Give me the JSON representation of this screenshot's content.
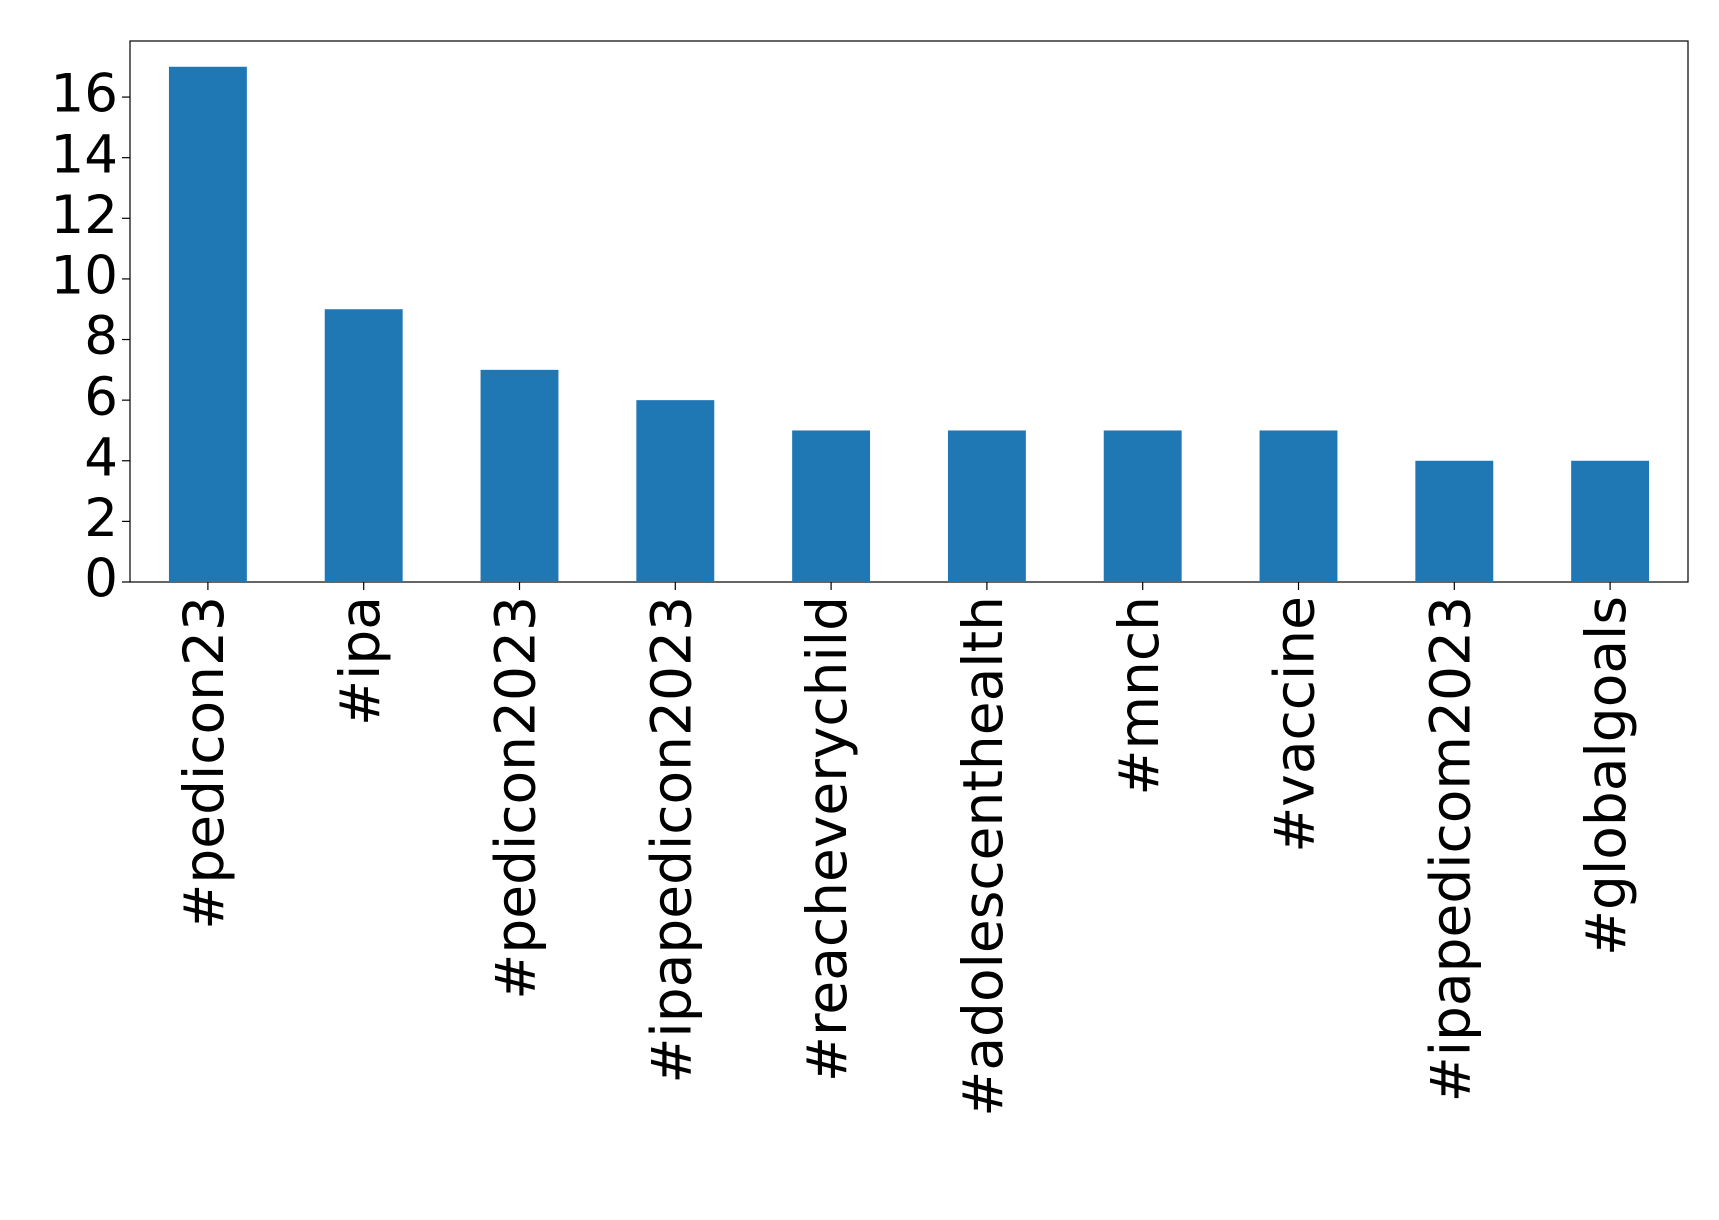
{
  "chart_data": {
    "type": "bar",
    "categories": [
      "#pedicon23",
      "#ipa",
      "#pedicon2023",
      "#ipapedicon2023",
      "#reacheverychild",
      "#adolescenthealth",
      "#mnch",
      "#vaccine",
      "#ipapedicom2023",
      "#globalgoals"
    ],
    "values": [
      17,
      9,
      7,
      6,
      5,
      5,
      5,
      5,
      4,
      4
    ],
    "color": "#1f77b4",
    "ylim": [
      0,
      17.85
    ],
    "yticks": [
      0,
      2,
      4,
      6,
      8,
      10,
      12,
      14,
      16
    ],
    "grid": false
  }
}
